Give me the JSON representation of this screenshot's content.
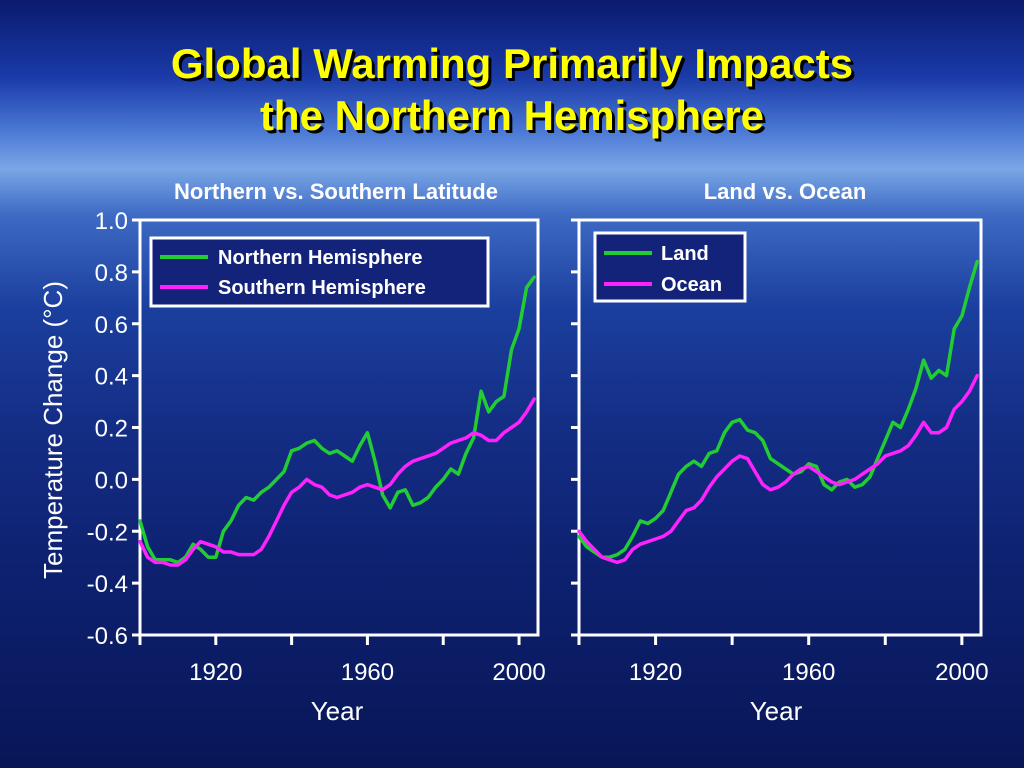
{
  "slide": {
    "title_line1": "Global Warming Primarily Impacts",
    "title_line2": "the Northern Hemisphere"
  },
  "colors": {
    "series_a": "#22cc33",
    "series_b": "#ff22ff",
    "axis": "#ffffff",
    "title": "#ffff00"
  },
  "chart_data": [
    {
      "type": "line",
      "title": "Northern vs. Southern Latitude",
      "xlabel": "Year",
      "ylabel": "Temperature Change (°C)",
      "xlim": [
        1900,
        2005
      ],
      "ylim": [
        -0.6,
        1.0
      ],
      "xticks": [
        1920,
        1960,
        2000
      ],
      "yticks": [
        -0.6,
        -0.4,
        -0.2,
        0.0,
        0.2,
        0.4,
        0.6,
        0.8,
        1.0
      ],
      "ytick_labels": [
        "-0.6",
        "-0.4",
        "-0.2",
        "0.0",
        "0.2",
        "0.4",
        "0.6",
        "0.8",
        "1.0"
      ],
      "xtick_labels": [
        "1920",
        "1960",
        "2000"
      ],
      "legend_position": "top-right",
      "series": [
        {
          "name": "Northern Hemisphere",
          "color": "#22cc33",
          "x": [
            1900,
            1902,
            1904,
            1906,
            1908,
            1910,
            1912,
            1914,
            1916,
            1918,
            1920,
            1922,
            1924,
            1926,
            1928,
            1930,
            1932,
            1934,
            1936,
            1938,
            1940,
            1942,
            1944,
            1946,
            1948,
            1950,
            1952,
            1954,
            1956,
            1958,
            1960,
            1962,
            1964,
            1966,
            1968,
            1970,
            1972,
            1974,
            1976,
            1978,
            1980,
            1982,
            1984,
            1986,
            1988,
            1990,
            1992,
            1994,
            1996,
            1998,
            2000,
            2002,
            2004
          ],
          "y": [
            -0.16,
            -0.26,
            -0.31,
            -0.31,
            -0.31,
            -0.32,
            -0.3,
            -0.25,
            -0.27,
            -0.3,
            -0.3,
            -0.2,
            -0.16,
            -0.1,
            -0.07,
            -0.08,
            -0.05,
            -0.03,
            0.0,
            0.03,
            0.11,
            0.12,
            0.14,
            0.15,
            0.12,
            0.1,
            0.11,
            0.09,
            0.07,
            0.13,
            0.18,
            0.07,
            -0.06,
            -0.11,
            -0.05,
            -0.04,
            -0.1,
            -0.09,
            -0.07,
            -0.03,
            0.0,
            0.04,
            0.02,
            0.1,
            0.16,
            0.34,
            0.26,
            0.3,
            0.32,
            0.5,
            0.58,
            0.74,
            0.78
          ]
        },
        {
          "name": "Southern Hemisphere",
          "color": "#ff22ff",
          "x": [
            1900,
            1902,
            1904,
            1906,
            1908,
            1910,
            1912,
            1914,
            1916,
            1918,
            1920,
            1922,
            1924,
            1926,
            1928,
            1930,
            1932,
            1934,
            1936,
            1938,
            1940,
            1942,
            1944,
            1946,
            1948,
            1950,
            1952,
            1954,
            1956,
            1958,
            1960,
            1962,
            1964,
            1966,
            1968,
            1970,
            1972,
            1974,
            1976,
            1978,
            1980,
            1982,
            1984,
            1986,
            1988,
            1990,
            1992,
            1994,
            1996,
            1998,
            2000,
            2002,
            2004
          ],
          "y": [
            -0.24,
            -0.3,
            -0.32,
            -0.32,
            -0.33,
            -0.33,
            -0.31,
            -0.27,
            -0.24,
            -0.25,
            -0.26,
            -0.28,
            -0.28,
            -0.29,
            -0.29,
            -0.29,
            -0.27,
            -0.22,
            -0.16,
            -0.1,
            -0.05,
            -0.03,
            0.0,
            -0.02,
            -0.03,
            -0.06,
            -0.07,
            -0.06,
            -0.05,
            -0.03,
            -0.02,
            -0.03,
            -0.04,
            -0.02,
            0.02,
            0.05,
            0.07,
            0.08,
            0.09,
            0.1,
            0.12,
            0.14,
            0.15,
            0.16,
            0.18,
            0.17,
            0.15,
            0.15,
            0.18,
            0.2,
            0.22,
            0.26,
            0.31
          ]
        }
      ]
    },
    {
      "type": "line",
      "title": "Land vs. Ocean",
      "xlabel": "Year",
      "xlim": [
        1900,
        2005
      ],
      "ylim": [
        -0.6,
        1.0
      ],
      "xticks": [
        1920,
        1960,
        2000
      ],
      "xtick_labels": [
        "1920",
        "1960",
        "2000"
      ],
      "legend_position": "top-left",
      "series": [
        {
          "name": "Land",
          "color": "#22cc33",
          "x": [
            1900,
            1902,
            1904,
            1906,
            1908,
            1910,
            1912,
            1914,
            1916,
            1918,
            1920,
            1922,
            1924,
            1926,
            1928,
            1930,
            1932,
            1934,
            1936,
            1938,
            1940,
            1942,
            1944,
            1946,
            1948,
            1950,
            1952,
            1954,
            1956,
            1958,
            1960,
            1962,
            1964,
            1966,
            1968,
            1970,
            1972,
            1974,
            1976,
            1978,
            1980,
            1982,
            1984,
            1986,
            1988,
            1990,
            1992,
            1994,
            1996,
            1998,
            2000,
            2002,
            2004
          ],
          "y": [
            -0.22,
            -0.26,
            -0.28,
            -0.3,
            -0.3,
            -0.29,
            -0.27,
            -0.22,
            -0.16,
            -0.17,
            -0.15,
            -0.12,
            -0.05,
            0.02,
            0.05,
            0.07,
            0.05,
            0.1,
            0.11,
            0.18,
            0.22,
            0.23,
            0.19,
            0.18,
            0.15,
            0.08,
            0.06,
            0.04,
            0.02,
            0.03,
            0.06,
            0.05,
            -0.02,
            -0.04,
            -0.01,
            0.0,
            -0.03,
            -0.02,
            0.01,
            0.08,
            0.15,
            0.22,
            0.2,
            0.27,
            0.35,
            0.46,
            0.39,
            0.42,
            0.4,
            0.58,
            0.63,
            0.74,
            0.84
          ]
        },
        {
          "name": "Ocean",
          "color": "#ff22ff",
          "x": [
            1900,
            1902,
            1904,
            1906,
            1908,
            1910,
            1912,
            1914,
            1916,
            1918,
            1920,
            1922,
            1924,
            1926,
            1928,
            1930,
            1932,
            1934,
            1936,
            1938,
            1940,
            1942,
            1944,
            1946,
            1948,
            1950,
            1952,
            1954,
            1956,
            1958,
            1960,
            1962,
            1964,
            1966,
            1968,
            1970,
            1972,
            1974,
            1976,
            1978,
            1980,
            1982,
            1984,
            1986,
            1988,
            1990,
            1992,
            1994,
            1996,
            1998,
            2000,
            2002,
            2004
          ],
          "y": [
            -0.2,
            -0.24,
            -0.27,
            -0.3,
            -0.31,
            -0.32,
            -0.31,
            -0.27,
            -0.25,
            -0.24,
            -0.23,
            -0.22,
            -0.2,
            -0.16,
            -0.12,
            -0.11,
            -0.08,
            -0.03,
            0.01,
            0.04,
            0.07,
            0.09,
            0.08,
            0.03,
            -0.02,
            -0.04,
            -0.03,
            -0.01,
            0.02,
            0.04,
            0.05,
            0.03,
            0.01,
            -0.01,
            -0.02,
            -0.01,
            0.0,
            0.02,
            0.04,
            0.06,
            0.09,
            0.1,
            0.11,
            0.13,
            0.17,
            0.22,
            0.18,
            0.18,
            0.2,
            0.27,
            0.3,
            0.34,
            0.4
          ]
        }
      ]
    }
  ]
}
